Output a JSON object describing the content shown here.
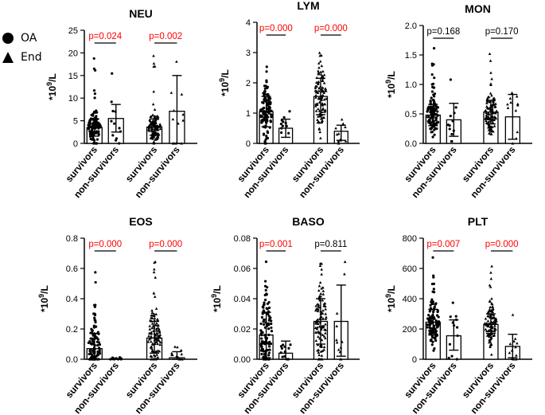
{
  "legend": {
    "items": [
      {
        "label": "OA",
        "marker": "circle"
      },
      {
        "label": "End",
        "marker": "triangle"
      }
    ]
  },
  "style": {
    "significant_color": "#ff0000",
    "nonsignificant_color": "#000000",
    "ink": "#000000"
  },
  "chart_data": [
    {
      "type": "bar",
      "title": "NEU",
      "ylabel": "*10^9/L",
      "ylim": [
        0,
        25
      ],
      "yticks": [
        0,
        5,
        10,
        15,
        20,
        25
      ],
      "ytick_labels": [
        "0",
        "5",
        "10",
        "15",
        "20",
        "25"
      ],
      "groups": [
        "OA",
        "End"
      ],
      "categories": [
        "survivors",
        "non-survivors",
        "survivors",
        "non-survivors"
      ],
      "series": [
        {
          "group": "OA",
          "category": "survivors",
          "mean": 3.5,
          "err_low": 1.6,
          "err_high": 5.4
        },
        {
          "group": "OA",
          "category": "non-survivors",
          "mean": 5.5,
          "err_low": 2.5,
          "err_high": 8.6
        },
        {
          "group": "End",
          "category": "survivors",
          "mean": 3.6,
          "err_low": 1.8,
          "err_high": 5.4
        },
        {
          "group": "End",
          "category": "non-survivors",
          "mean": 7.1,
          "err_low": 0.0,
          "err_high": 15.0
        }
      ],
      "pvalues": [
        {
          "group": "OA",
          "text": "p=0.024",
          "significant": true
        },
        {
          "group": "End",
          "text": "p=0.002",
          "significant": true
        }
      ]
    },
    {
      "type": "bar",
      "title": "LYM",
      "ylabel": "*10^9/L",
      "ylim": [
        0,
        4
      ],
      "yticks": [
        0,
        1,
        2,
        3,
        4
      ],
      "ytick_labels": [
        "0",
        "1",
        "2",
        "3",
        "4"
      ],
      "groups": [
        "OA",
        "End"
      ],
      "categories": [
        "survivors",
        "non-survivors",
        "survivors",
        "non-survivors"
      ],
      "series": [
        {
          "group": "OA",
          "category": "survivors",
          "mean": 1.05,
          "err_low": 0.55,
          "err_high": 1.55
        },
        {
          "group": "OA",
          "category": "non-survivors",
          "mean": 0.5,
          "err_low": 0.2,
          "err_high": 0.8
        },
        {
          "group": "End",
          "category": "survivors",
          "mean": 1.55,
          "err_low": 0.95,
          "err_high": 2.15
        },
        {
          "group": "End",
          "category": "non-survivors",
          "mean": 0.4,
          "err_low": 0.1,
          "err_high": 0.6
        }
      ],
      "pvalues": [
        {
          "group": "OA",
          "text": "p=0.000",
          "significant": true
        },
        {
          "group": "End",
          "text": "p=0.000",
          "significant": true
        }
      ]
    },
    {
      "type": "bar",
      "title": "MON",
      "ylabel": "*10^9/L",
      "ylim": [
        0,
        2.0
      ],
      "yticks": [
        0,
        0.5,
        1.0,
        1.5,
        2.0
      ],
      "ytick_labels": [
        "0.0",
        "0.5",
        "1.0",
        "1.5",
        "2.0"
      ],
      "groups": [
        "OA",
        "End"
      ],
      "categories": [
        "survivors",
        "non-survivors",
        "survivors",
        "non-survivors"
      ],
      "series": [
        {
          "group": "OA",
          "category": "survivors",
          "mean": 0.48,
          "err_low": 0.3,
          "err_high": 0.66
        },
        {
          "group": "OA",
          "category": "non-survivors",
          "mean": 0.4,
          "err_low": 0.12,
          "err_high": 0.68
        },
        {
          "group": "End",
          "category": "survivors",
          "mean": 0.53,
          "err_low": 0.33,
          "err_high": 0.73
        },
        {
          "group": "End",
          "category": "non-survivors",
          "mean": 0.45,
          "err_low": 0.07,
          "err_high": 0.83
        }
      ],
      "pvalues": [
        {
          "group": "OA",
          "text": "p=0.168",
          "significant": false
        },
        {
          "group": "End",
          "text": "p=0.170",
          "significant": false
        }
      ]
    },
    {
      "type": "bar",
      "title": "EOS",
      "ylabel": "*10^9/L",
      "ylim": [
        0,
        0.8
      ],
      "yticks": [
        0,
        0.2,
        0.4,
        0.6,
        0.8
      ],
      "ytick_labels": [
        "0.0",
        "0.2",
        "0.4",
        "0.6",
        "0.8"
      ],
      "groups": [
        "OA",
        "End"
      ],
      "categories": [
        "survivors",
        "non-survivors",
        "survivors",
        "non-survivors"
      ],
      "series": [
        {
          "group": "OA",
          "category": "survivors",
          "mean": 0.07,
          "err_low": 0.0,
          "err_high": 0.17
        },
        {
          "group": "OA",
          "category": "non-survivors",
          "mean": 0.0,
          "err_low": 0.0,
          "err_high": 0.0
        },
        {
          "group": "End",
          "category": "survivors",
          "mean": 0.14,
          "err_low": 0.04,
          "err_high": 0.25
        },
        {
          "group": "End",
          "category": "non-survivors",
          "mean": 0.01,
          "err_low": 0.0,
          "err_high": 0.05
        }
      ],
      "pvalues": [
        {
          "group": "OA",
          "text": "p=0.000",
          "significant": true
        },
        {
          "group": "End",
          "text": "p=0.000",
          "significant": true
        }
      ]
    },
    {
      "type": "bar",
      "title": "BASO",
      "ylabel": "*10^9/L",
      "ylim": [
        0,
        0.08
      ],
      "yticks": [
        0,
        0.02,
        0.04,
        0.06,
        0.08
      ],
      "ytick_labels": [
        "0.00",
        "0.02",
        "0.04",
        "0.06",
        "0.08"
      ],
      "groups": [
        "OA",
        "End"
      ],
      "categories": [
        "survivors",
        "non-survivors",
        "survivors",
        "non-survivors"
      ],
      "series": [
        {
          "group": "OA",
          "category": "survivors",
          "mean": 0.016,
          "err_low": 0.001,
          "err_high": 0.031
        },
        {
          "group": "OA",
          "category": "non-survivors",
          "mean": 0.004,
          "err_low": 0.0,
          "err_high": 0.012
        },
        {
          "group": "End",
          "category": "survivors",
          "mean": 0.025,
          "err_low": 0.01,
          "err_high": 0.04
        },
        {
          "group": "End",
          "category": "non-survivors",
          "mean": 0.025,
          "err_low": 0.002,
          "err_high": 0.049
        }
      ],
      "pvalues": [
        {
          "group": "OA",
          "text": "p=0.001",
          "significant": true
        },
        {
          "group": "End",
          "text": "p=0.811",
          "significant": false
        }
      ]
    },
    {
      "type": "bar",
      "title": "PLT",
      "ylabel": "*10^9/L",
      "ylim": [
        0,
        800
      ],
      "yticks": [
        0,
        200,
        400,
        600,
        800
      ],
      "ytick_labels": [
        "0",
        "200",
        "400",
        "600",
        "800"
      ],
      "groups": [
        "OA",
        "End"
      ],
      "categories": [
        "survivors",
        "non-survivors",
        "survivors",
        "non-survivors"
      ],
      "series": [
        {
          "group": "OA",
          "category": "survivors",
          "mean": 245,
          "err_low": 160,
          "err_high": 330
        },
        {
          "group": "OA",
          "category": "non-survivors",
          "mean": 155,
          "err_low": 60,
          "err_high": 260
        },
        {
          "group": "End",
          "category": "survivors",
          "mean": 230,
          "err_low": 170,
          "err_high": 300
        },
        {
          "group": "End",
          "category": "non-survivors",
          "mean": 85,
          "err_low": 10,
          "err_high": 165
        }
      ],
      "pvalues": [
        {
          "group": "OA",
          "text": "p=0.007",
          "significant": true
        },
        {
          "group": "End",
          "text": "p=0.000",
          "significant": true
        }
      ]
    }
  ]
}
